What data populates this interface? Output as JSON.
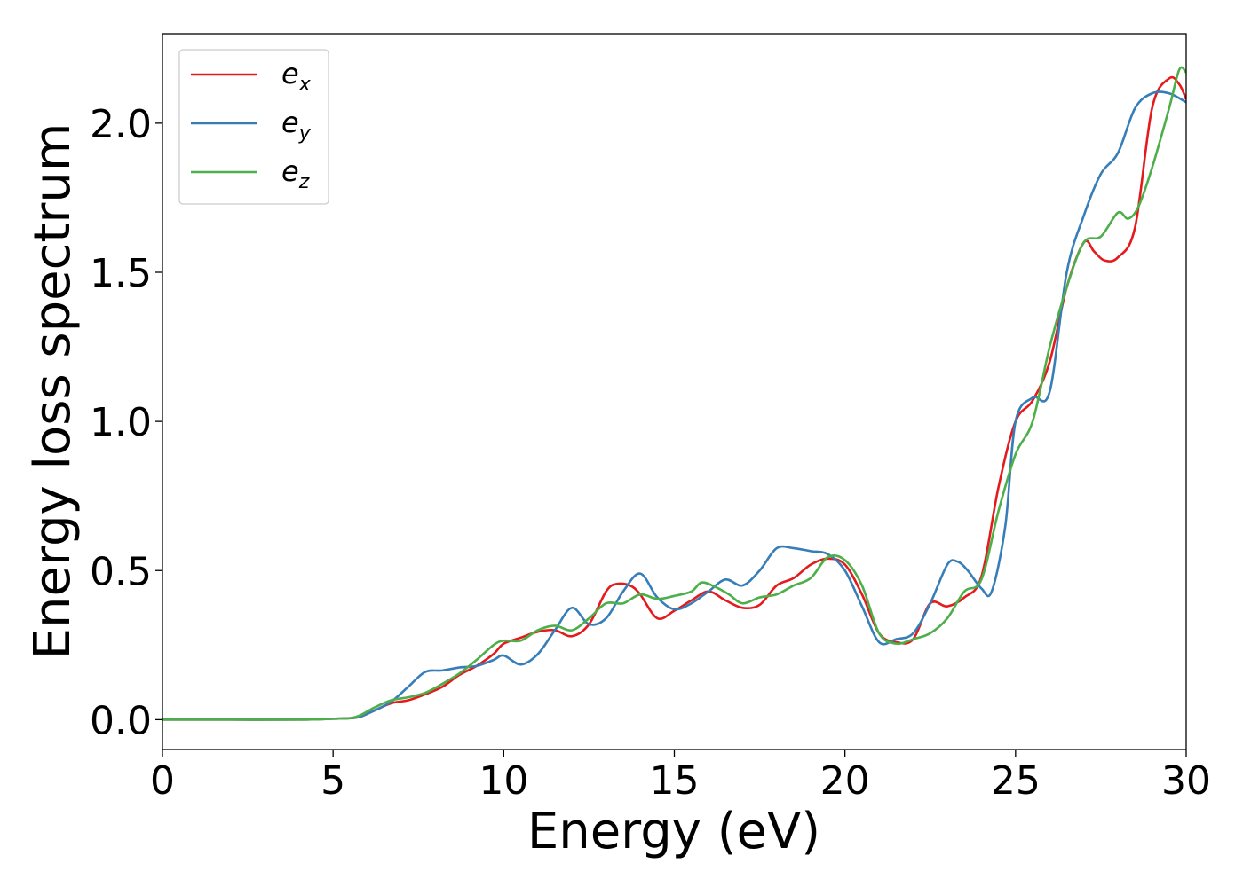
{
  "chart_data": {
    "type": "line",
    "xlabel": "Energy (eV)",
    "ylabel": "Energy loss spectrum",
    "xlim": [
      0,
      30
    ],
    "ylim": [
      -0.1,
      2.3
    ],
    "xticks": [
      0,
      5,
      10,
      15,
      20,
      25,
      30
    ],
    "xtick_labels": [
      "0",
      "5",
      "10",
      "15",
      "20",
      "25",
      "30"
    ],
    "yticks": [
      0.0,
      0.5,
      1.0,
      1.5,
      2.0
    ],
    "ytick_labels": [
      "0.0",
      "0.5",
      "1.0",
      "1.5",
      "2.0"
    ],
    "grid": false,
    "legend_position": "upper-left",
    "series": [
      {
        "name": "e_x",
        "label_base": "e",
        "label_sub": "x",
        "color": "#e41a1c",
        "x": [
          0,
          2,
          4,
          5,
          5.5,
          5.8,
          6.2,
          6.7,
          7.2,
          7.7,
          8.2,
          8.7,
          9.2,
          9.7,
          10.0,
          10.5,
          11.0,
          11.5,
          12.0,
          12.5,
          13.0,
          13.3,
          13.7,
          14.0,
          14.5,
          15.0,
          15.5,
          16.0,
          16.5,
          17.0,
          17.5,
          18.0,
          18.5,
          19.0,
          19.5,
          20.0,
          20.5,
          21.0,
          21.5,
          22.0,
          22.5,
          23.0,
          23.5,
          24.0,
          24.5,
          25.0,
          25.5,
          26.0,
          26.5,
          27.0,
          27.3,
          27.6,
          28.0,
          28.5,
          29.0,
          29.5,
          29.8,
          30.0
        ],
        "y": [
          0.0,
          0.0,
          0.0,
          0.003,
          0.005,
          0.01,
          0.03,
          0.055,
          0.065,
          0.085,
          0.11,
          0.15,
          0.18,
          0.22,
          0.255,
          0.275,
          0.295,
          0.3,
          0.28,
          0.32,
          0.43,
          0.455,
          0.45,
          0.42,
          0.34,
          0.365,
          0.4,
          0.43,
          0.4,
          0.375,
          0.385,
          0.45,
          0.475,
          0.52,
          0.54,
          0.52,
          0.42,
          0.29,
          0.26,
          0.27,
          0.39,
          0.38,
          0.41,
          0.48,
          0.78,
          1.0,
          1.07,
          1.2,
          1.45,
          1.6,
          1.57,
          1.54,
          1.55,
          1.65,
          2.05,
          2.15,
          2.13,
          2.08
        ]
      },
      {
        "name": "e_y",
        "label_base": "e",
        "label_sub": "y",
        "color": "#377eb8",
        "x": [
          0,
          2,
          4,
          5,
          5.5,
          5.8,
          6.2,
          6.7,
          7.2,
          7.7,
          8.2,
          8.7,
          9.2,
          9.7,
          10.0,
          10.5,
          11.0,
          11.5,
          12.0,
          12.5,
          13.0,
          13.5,
          14.0,
          14.5,
          15.0,
          15.5,
          16.0,
          16.5,
          17.0,
          17.5,
          18.0,
          18.5,
          19.0,
          19.5,
          20.0,
          20.5,
          21.0,
          21.5,
          22.0,
          22.5,
          23.0,
          23.3,
          23.6,
          24.0,
          24.3,
          24.7,
          25.0,
          25.5,
          26.0,
          26.5,
          27.0,
          27.5,
          28.0,
          28.5,
          29.0,
          29.5,
          30.0
        ],
        "y": [
          0.0,
          0.0,
          0.0,
          0.003,
          0.005,
          0.01,
          0.03,
          0.06,
          0.11,
          0.16,
          0.165,
          0.175,
          0.18,
          0.2,
          0.215,
          0.185,
          0.22,
          0.3,
          0.375,
          0.32,
          0.34,
          0.43,
          0.49,
          0.41,
          0.37,
          0.39,
          0.43,
          0.47,
          0.45,
          0.5,
          0.575,
          0.575,
          0.565,
          0.555,
          0.5,
          0.38,
          0.26,
          0.27,
          0.29,
          0.39,
          0.52,
          0.53,
          0.5,
          0.44,
          0.43,
          0.65,
          1.0,
          1.08,
          1.1,
          1.5,
          1.69,
          1.83,
          1.9,
          2.05,
          2.1,
          2.1,
          2.07
        ]
      },
      {
        "name": "e_z",
        "label_base": "e",
        "label_sub": "z",
        "color": "#4daf4a",
        "x": [
          0,
          2,
          4,
          5,
          5.5,
          5.8,
          6.2,
          6.7,
          7.2,
          7.7,
          8.2,
          8.7,
          9.2,
          9.7,
          10.0,
          10.5,
          11.0,
          11.5,
          12.0,
          12.5,
          13.0,
          13.5,
          14.0,
          14.5,
          15.0,
          15.5,
          15.8,
          16.2,
          16.6,
          17.0,
          17.5,
          18.0,
          18.5,
          19.0,
          19.5,
          20.0,
          20.5,
          21.0,
          21.5,
          22.0,
          22.5,
          23.0,
          23.5,
          24.0,
          24.5,
          25.0,
          25.5,
          26.0,
          26.5,
          27.0,
          27.5,
          28.0,
          28.3,
          28.6,
          29.0,
          29.5,
          29.8,
          30.0
        ],
        "y": [
          0.0,
          0.0,
          0.0,
          0.003,
          0.005,
          0.015,
          0.04,
          0.065,
          0.075,
          0.09,
          0.12,
          0.155,
          0.2,
          0.25,
          0.265,
          0.265,
          0.3,
          0.315,
          0.3,
          0.34,
          0.39,
          0.39,
          0.42,
          0.405,
          0.415,
          0.43,
          0.46,
          0.445,
          0.42,
          0.39,
          0.41,
          0.42,
          0.45,
          0.475,
          0.545,
          0.535,
          0.45,
          0.29,
          0.255,
          0.27,
          0.29,
          0.34,
          0.43,
          0.47,
          0.7,
          0.89,
          1.0,
          1.25,
          1.45,
          1.6,
          1.62,
          1.7,
          1.68,
          1.72,
          1.85,
          2.05,
          2.18,
          2.17
        ]
      }
    ]
  }
}
